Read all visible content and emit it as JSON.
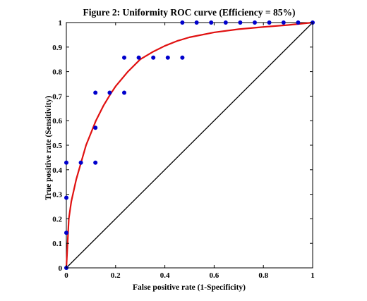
{
  "chart_data": {
    "type": "scatter",
    "title": "Figure 2: Uniformity ROC curve (Efficiency = 85%)",
    "xlabel": "False positive rate (1-Specificity)",
    "ylabel": "True positive rate (Sensitivity)",
    "xlim": [
      0,
      1
    ],
    "ylim": [
      0,
      1
    ],
    "x_ticks": [
      "0",
      "0.2",
      "0.4",
      "0.6",
      "0.8",
      "1"
    ],
    "y_ticks": [
      "0",
      "0.1",
      "0.2",
      "0.3",
      "0.4",
      "0.5",
      "0.6",
      "0.7",
      "0.8",
      "0.9",
      "1"
    ],
    "grid": false,
    "legend": "none",
    "colors": {
      "points": "#0000cc",
      "fit_curve": "#e01010",
      "diagonal": "#000000"
    },
    "series": [
      {
        "type": "scatter",
        "points": [
          [
            0,
            0
          ],
          [
            0,
            0.143
          ],
          [
            0,
            0.286
          ],
          [
            0,
            0.429
          ],
          [
            0.059,
            0.429
          ],
          [
            0.118,
            0.429
          ],
          [
            0.118,
            0.571
          ],
          [
            0.118,
            0.714
          ],
          [
            0.176,
            0.714
          ],
          [
            0.235,
            0.714
          ],
          [
            0.235,
            0.857
          ],
          [
            0.294,
            0.857
          ],
          [
            0.353,
            0.857
          ],
          [
            0.412,
            0.857
          ],
          [
            0.471,
            0.857
          ],
          [
            0.471,
            1.0
          ],
          [
            0.529,
            1.0
          ],
          [
            0.588,
            1.0
          ],
          [
            0.647,
            1.0
          ],
          [
            0.706,
            1.0
          ],
          [
            0.765,
            1.0
          ],
          [
            0.824,
            1.0
          ],
          [
            0.882,
            1.0
          ],
          [
            0.941,
            1.0
          ],
          [
            1.0,
            1.0
          ]
        ]
      },
      {
        "type": "line",
        "points": [
          [
            0,
            0
          ],
          [
            0.01,
            0.2
          ],
          [
            0.02,
            0.27
          ],
          [
            0.04,
            0.36
          ],
          [
            0.06,
            0.43
          ],
          [
            0.08,
            0.5
          ],
          [
            0.1,
            0.55
          ],
          [
            0.12,
            0.6
          ],
          [
            0.15,
            0.66
          ],
          [
            0.18,
            0.71
          ],
          [
            0.2,
            0.74
          ],
          [
            0.25,
            0.8
          ],
          [
            0.3,
            0.85
          ],
          [
            0.35,
            0.88
          ],
          [
            0.4,
            0.905
          ],
          [
            0.45,
            0.925
          ],
          [
            0.5,
            0.94
          ],
          [
            0.6,
            0.96
          ],
          [
            0.7,
            0.973
          ],
          [
            0.8,
            0.982
          ],
          [
            0.9,
            0.99
          ],
          [
            1.0,
            1.0
          ]
        ]
      },
      {
        "type": "line",
        "points": [
          [
            0,
            0
          ],
          [
            1,
            1
          ]
        ]
      }
    ]
  }
}
